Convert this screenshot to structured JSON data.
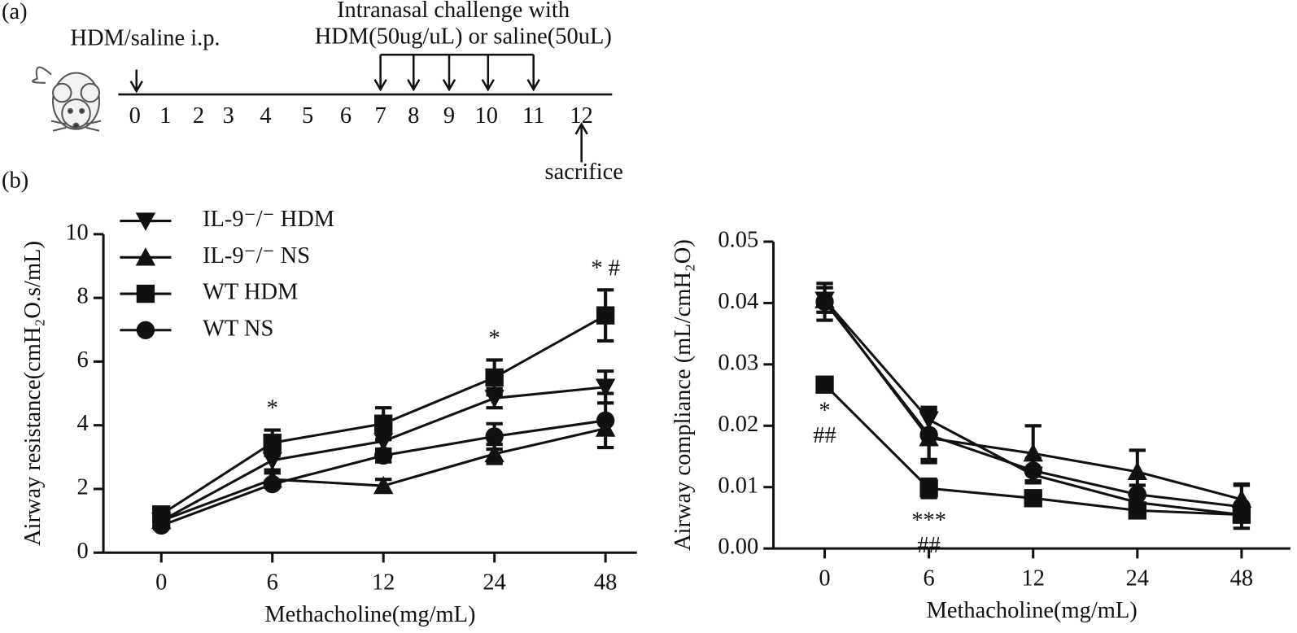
{
  "timeline": {
    "panel_label": "(a)",
    "ip_label": "HDM/saline i.p.",
    "challenge_label": [
      "Intranasal challenge with",
      "HDM(50ug/uL) or saline(50uL)"
    ],
    "days": [
      0,
      1,
      2,
      3,
      4,
      5,
      6,
      7,
      8,
      9,
      10,
      11,
      12
    ],
    "sacrifice_label": "sacrifice"
  },
  "panel_b_label": "(b)",
  "chart_data": [
    {
      "type": "line",
      "x_label": "Methacholine(mg/mL)",
      "y_label": "Airway resistance(cmH₂O.s/mL)",
      "categories": [
        "0",
        "6",
        "12",
        "24",
        "48"
      ],
      "ylim": [
        0,
        10
      ],
      "yticks": [
        0,
        2,
        4,
        6,
        8,
        10
      ],
      "legend": "upper-left",
      "annotation_position": "above",
      "series": [
        {
          "name": "IL-9⁻/⁻ HDM",
          "color": "#111111",
          "marker": "triangle-down",
          "values": [
            1.0,
            2.9,
            3.5,
            4.85,
            5.2
          ],
          "errors": [
            0.1,
            0.3,
            0.3,
            0.3,
            0.5
          ]
        },
        {
          "name": "IL-9⁻/⁻ NS",
          "color": "#111111",
          "marker": "triangle-up",
          "values": [
            1.0,
            2.3,
            2.1,
            3.1,
            3.9
          ],
          "errors": [
            0.1,
            0.2,
            0.2,
            0.3,
            0.2
          ]
        },
        {
          "name": "WT HDM",
          "color": "#111111",
          "marker": "square",
          "values": [
            1.2,
            3.45,
            4.05,
            5.5,
            7.45
          ],
          "errors": [
            0.1,
            0.4,
            0.5,
            0.55,
            0.8
          ]
        },
        {
          "name": "WT NS",
          "color": "#111111",
          "marker": "circle",
          "values": [
            0.85,
            2.15,
            3.05,
            3.65,
            4.15
          ],
          "errors": [
            0.1,
            0.1,
            0.2,
            0.4,
            0.85
          ]
        }
      ],
      "annotations": [
        {
          "category": 1,
          "text": [
            "*"
          ]
        },
        {
          "category": 3,
          "text": [
            "*"
          ]
        },
        {
          "category": 4,
          "text": [
            "* #"
          ]
        }
      ]
    },
    {
      "type": "line",
      "x_label": "Methacholine(mg/mL)",
      "y_label": "Airway compliance (mL/cmH₂O)",
      "categories": [
        "0",
        "6",
        "12",
        "24",
        "48"
      ],
      "ylim": [
        0,
        0.05
      ],
      "yticks": [
        {
          "value": 0,
          "label": "0.00"
        },
        {
          "value": 0.01,
          "label": "0.01"
        },
        {
          "value": 0.02,
          "label": "0.02"
        },
        {
          "value": 0.03,
          "label": "0.03"
        },
        {
          "value": 0.04,
          "label": "0.04"
        },
        {
          "value": 0.05,
          "label": "0.05"
        }
      ],
      "annotation_position": "below",
      "series": [
        {
          "color": "#111111",
          "marker": "triangle-down",
          "values": [
            0.0405,
            0.021,
            0.012,
            0.0075,
            0.0055
          ],
          "errors": [
            0.002,
            0.002,
            0.001,
            0.001,
            0.001
          ]
        },
        {
          "color": "#111111",
          "marker": "triangle-up",
          "values": [
            0.0405,
            0.018,
            0.0155,
            0.0125,
            0.008
          ],
          "errors": [
            0.002,
            0.004,
            0.0045,
            0.0035,
            0.0025
          ]
        },
        {
          "color": "#111111",
          "marker": "square",
          "values": [
            0.0267,
            0.0098,
            0.0082,
            0.0062,
            0.0055
          ],
          "errors": [
            0.0005,
            0.0015,
            0.001,
            0.001,
            0.001
          ]
        },
        {
          "color": "#111111",
          "marker": "circle",
          "values": [
            0.0402,
            0.0185,
            0.0127,
            0.0088,
            0.0068
          ],
          "errors": [
            0.003,
            0.004,
            0.002,
            0.0015,
            0.0035
          ]
        }
      ],
      "annotations": [
        {
          "category": 0,
          "text": [
            "*",
            "##"
          ]
        },
        {
          "category": 1,
          "text": [
            "***",
            "##"
          ]
        }
      ]
    }
  ]
}
